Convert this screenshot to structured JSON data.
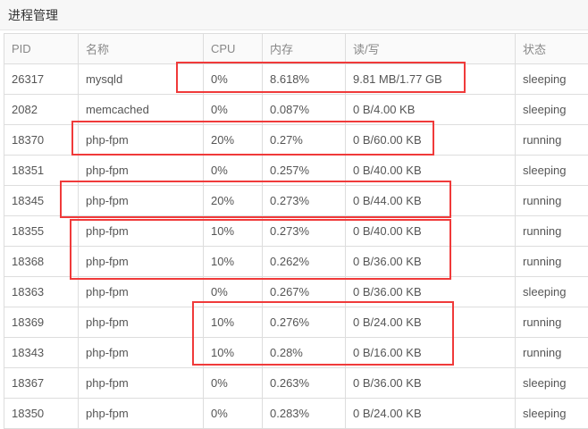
{
  "title": "进程管理",
  "columns": [
    "PID",
    "名称",
    "CPU",
    "内存",
    "读/写",
    "状态"
  ],
  "rows": [
    [
      "26317",
      "mysqld",
      "0%",
      "8.618%",
      "9.81 MB/1.77 GB",
      "sleeping"
    ],
    [
      "2082",
      "memcached",
      "0%",
      "0.087%",
      "0 B/4.00 KB",
      "sleeping"
    ],
    [
      "18370",
      "php-fpm",
      "20%",
      "0.27%",
      "0 B/60.00 KB",
      "running"
    ],
    [
      "18351",
      "php-fpm",
      "0%",
      "0.257%",
      "0 B/40.00 KB",
      "sleeping"
    ],
    [
      "18345",
      "php-fpm",
      "20%",
      "0.273%",
      "0 B/44.00 KB",
      "running"
    ],
    [
      "18355",
      "php-fpm",
      "10%",
      "0.273%",
      "0 B/40.00 KB",
      "running"
    ],
    [
      "18368",
      "php-fpm",
      "10%",
      "0.262%",
      "0 B/36.00 KB",
      "running"
    ],
    [
      "18363",
      "php-fpm",
      "0%",
      "0.267%",
      "0 B/36.00 KB",
      "sleeping"
    ],
    [
      "18369",
      "php-fpm",
      "10%",
      "0.276%",
      "0 B/24.00 KB",
      "running"
    ],
    [
      "18343",
      "php-fpm",
      "10%",
      "0.28%",
      "0 B/16.00 KB",
      "running"
    ],
    [
      "18367",
      "php-fpm",
      "0%",
      "0.263%",
      "0 B/36.00 KB",
      "sleeping"
    ],
    [
      "18350",
      "php-fpm",
      "0%",
      "0.283%",
      "0 B/24.00 KB",
      "sleeping"
    ]
  ],
  "highlight_color": "#f03a3a"
}
